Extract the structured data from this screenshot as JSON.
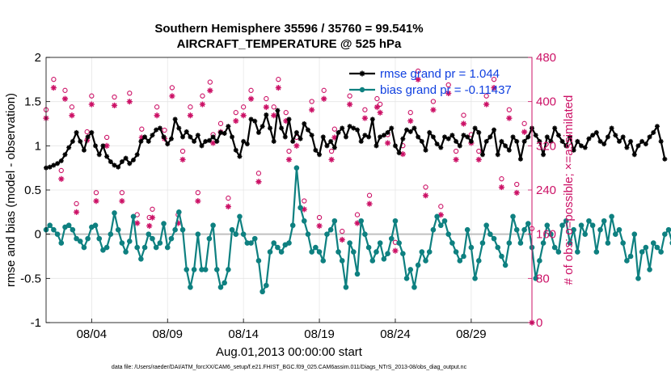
{
  "header": {
    "title_line1": "Southern Hemisphere 35596 / 35760 = 99.541%",
    "title_line2": "AIRCRAFT_TEMPERATURE @ 525 hPa"
  },
  "footer": {
    "datafile": "data file: /Users/raeder/DAI/ATM_forcXX/CAM6_setup/f.e21.FHIST_BGC.f09_025.CAM6assim.011/Diags_NTrS_2013-08/obs_diag_output.nc"
  },
  "colors": {
    "rmse": "#000000",
    "bias": "#0e8080",
    "obs": "#cc1166",
    "legend_text": "#1040e0",
    "zero_line": "#c0c0c0",
    "grid": "#e6e6e6"
  },
  "chart_data": {
    "type": "line",
    "title": "Southern Hemisphere 35596 / 35760 = 99.541%",
    "subtitle": "AIRCRAFT_TEMPERATURE @ 525 hPa",
    "xlabel": "Aug.01,2013 00:00:00 start",
    "ylabel": "rmse and bias (model - observation)",
    "ylabel_right": "# of obs: o=possible; ×=assimilated",
    "xlim": [
      1,
      33
    ],
    "ylim": [
      -1,
      2
    ],
    "ylim_right": [
      0,
      480
    ],
    "x_ticks": [
      4,
      9,
      14,
      19,
      24,
      29
    ],
    "x_tick_labels": [
      "08/04",
      "08/09",
      "08/14",
      "08/19",
      "08/24",
      "08/29"
    ],
    "y_ticks": [
      -1,
      -0.5,
      0,
      0.5,
      1,
      1.5,
      2
    ],
    "y_tick_labels": [
      "-1",
      "-0.5",
      "0",
      "0.5",
      "1",
      "1.5",
      "2"
    ],
    "y_ticks_right": [
      0,
      80,
      160,
      240,
      320,
      400,
      480
    ],
    "y_tick_labels_right": [
      "0",
      "80",
      "160",
      "240",
      "320",
      "400",
      "480"
    ],
    "zero_line": 0,
    "grid": true,
    "legend_position": "top-right",
    "series": [
      {
        "name": "rmse grand pr = 1.044",
        "axis": "left",
        "style": "line-star",
        "x_start": 1.0,
        "x_step": 0.25,
        "values": [
          0.75,
          0.76,
          0.78,
          0.8,
          0.83,
          0.9,
          0.98,
          1.05,
          1.15,
          1.05,
          0.95,
          1.1,
          1.15,
          1.0,
          0.9,
          1.0,
          0.88,
          0.82,
          0.78,
          0.76,
          0.82,
          0.86,
          0.8,
          0.84,
          0.9,
          1.05,
          1.1,
          1.05,
          1.12,
          1.18,
          1.2,
          1.1,
          1.02,
          1.08,
          1.3,
          1.2,
          1.1,
          1.16,
          1.1,
          1.05,
          1.12,
          1.0,
          1.05,
          1.06,
          1.1,
          1.05,
          1.15,
          1.14,
          1.22,
          1.1,
          0.95,
          0.88,
          1.05,
          1.02,
          1.3,
          1.28,
          1.15,
          1.22,
          1.35,
          1.2,
          1.05,
          1.4,
          1.2,
          1.1,
          1.3,
          1.05,
          1.15,
          1.08,
          1.25,
          1.18,
          1.12,
          0.95,
          0.9,
          1.1,
          1.0,
          1.05,
          0.98,
          1.15,
          1.2,
          1.1,
          1.22,
          1.2,
          1.18,
          1.05,
          1.12,
          1.1,
          1.3,
          1.0,
          1.1,
          1.12,
          1.15,
          1.2,
          1.0,
          0.92,
          1.08,
          1.18,
          1.16,
          1.2,
          1.1,
          1.05,
          0.95,
          1.15,
          1.1,
          1.02,
          0.98,
          1.1,
          1.08,
          1.12,
          1.05,
          1.0,
          1.12,
          1.1,
          1.05,
          1.2,
          1.15,
          0.9,
          1.05,
          1.1,
          1.18,
          0.9,
          1.05,
          1.0,
          0.95,
          1.1,
          1.05,
          0.85,
          1.05,
          1.1,
          1.2,
          1.12,
          1.05,
          0.9,
          1.1,
          1.05,
          1.2,
          1.12,
          1.05,
          1.0,
          1.1,
          0.95,
          1.05,
          1.0,
          0.98,
          1.08,
          1.12,
          1.15,
          1.05,
          1.02,
          1.1,
          1.2,
          1.12,
          1.05,
          1.1,
          0.98,
          1.05,
          0.9,
          1.0,
          1.05,
          1.02,
          1.1,
          1.15,
          1.22,
          1.05,
          0.85
        ]
      },
      {
        "name": "bias grand pr = -0.11437",
        "axis": "left",
        "style": "line-circle",
        "x_start": 1.0,
        "x_step": 0.25,
        "values": [
          0.05,
          0.1,
          0.05,
          0.0,
          -0.1,
          0.08,
          0.1,
          0.05,
          -0.05,
          -0.08,
          -0.15,
          -0.05,
          0.08,
          0.1,
          -0.05,
          -0.18,
          -0.15,
          0.0,
          0.24,
          0.05,
          -0.1,
          -0.2,
          -0.08,
          0.2,
          -0.15,
          -0.28,
          -0.15,
          0.0,
          -0.05,
          -0.15,
          -0.1,
          0.12,
          -0.15,
          -0.05,
          0.05,
          0.25,
          0.05,
          -0.4,
          -0.6,
          -0.4,
          0.0,
          -0.4,
          -0.4,
          -0.05,
          0.1,
          -0.4,
          -0.6,
          -0.55,
          -0.4,
          0.05,
          0.0,
          0.2,
          0.0,
          -0.1,
          -0.1,
          -0.05,
          -0.3,
          -0.65,
          -0.58,
          -0.2,
          -0.1,
          -0.15,
          -0.2,
          -0.12,
          -0.1,
          0.1,
          0.75,
          0.3,
          0.15,
          0.0,
          -0.2,
          -0.15,
          -0.2,
          -0.3,
          0.0,
          0.05,
          0.15,
          -0.2,
          -0.3,
          -0.6,
          -0.1,
          -0.2,
          -0.45,
          0.15,
          0.0,
          -0.15,
          -0.3,
          -0.2,
          -0.1,
          -0.28,
          -0.22,
          -0.05,
          0.15,
          -0.1,
          -0.22,
          -0.5,
          -0.4,
          -0.6,
          -0.35,
          -0.2,
          -0.3,
          -0.2,
          0.05,
          0.2,
          0.1,
          0.15,
          0.0,
          -0.1,
          -0.2,
          -0.3,
          -0.25,
          0.05,
          -0.15,
          -0.5,
          -0.3,
          -0.1,
          0.1,
          0.0,
          -0.05,
          -0.15,
          -0.25,
          -0.35,
          -0.1,
          0.2,
          0.05,
          -0.1,
          0.05,
          0.12,
          -0.15,
          -0.5,
          -0.3,
          -0.1,
          0.1,
          0.0,
          -0.15,
          -0.2,
          0.1,
          0.15,
          -0.1,
          0.05,
          -0.2,
          0.1,
          0.0,
          0.15,
          0.1,
          -0.2,
          0.05,
          0.15,
          -0.1,
          0.2,
          0.0,
          0.05,
          -0.1,
          -0.3,
          -0.25,
          0.0,
          -0.5,
          -0.2,
          -0.15,
          -0.4,
          -0.1,
          -0.15,
          -0.2,
          0.0,
          0.05,
          -0.1,
          0.1,
          0.0,
          -0.3,
          -0.55,
          0.15,
          0.18,
          0.0,
          -0.05
        ]
      },
      {
        "name": "obs possible",
        "axis": "right",
        "style": "circle-marker",
        "x": [
          1.0,
          1.5,
          2.0,
          2.25,
          2.7,
          3.0,
          3.7,
          4.0,
          4.3,
          5.0,
          5.5,
          6.0,
          6.5,
          7.0,
          7.3,
          7.8,
          8.0,
          8.3,
          8.8,
          9.3,
          9.7,
          10.0,
          10.5,
          11.0,
          11.3,
          11.8,
          12.0,
          12.5,
          13.0,
          13.5,
          14.0,
          14.5,
          15.0,
          15.5,
          16.0,
          16.3,
          16.8,
          17.0,
          17.5,
          18.0,
          18.5,
          19.0,
          19.3,
          19.8,
          20.0,
          20.5,
          21.0,
          21.5,
          22.0,
          22.3,
          22.8,
          23.0,
          23.5,
          24.0,
          24.5,
          25.0,
          25.5,
          26.0,
          26.5,
          27.0,
          27.5,
          28.0,
          28.5,
          29.0,
          29.5,
          30.0,
          30.5,
          31.0,
          31.5,
          32.0,
          32.5,
          33.0
        ],
        "values": [
          375,
          430,
          265,
          410,
          380,
          205,
          335,
          400,
          225,
          325,
          398,
          225,
          405,
          185,
          340,
          180,
          195,
          380,
          338,
          415,
          185,
          300,
          380,
          225,
          400,
          425,
          330,
          350,
          215,
          370,
          380,
          410,
          260,
          395,
          380,
          430,
          370,
          300,
          325,
          210,
          390,
          180,
          410,
          300,
          340,
          155,
          400,
          185,
          375,
          220,
          395,
          385,
          330,
          135,
          310,
          370,
          445,
          235,
          390,
          200,
          420,
          300,
          365,
          330,
          300,
          400,
          430,
          250,
          375,
          240,
          350,
          160
        ]
      },
      {
        "name": "obs assimilated",
        "axis": "right",
        "style": "star-marker",
        "x": [
          1.0,
          1.5,
          2.0,
          2.25,
          2.7,
          3.0,
          3.7,
          4.0,
          4.3,
          5.0,
          5.5,
          6.0,
          6.5,
          7.0,
          7.3,
          7.8,
          8.0,
          8.3,
          8.8,
          9.3,
          9.7,
          10.0,
          10.5,
          11.0,
          11.3,
          11.8,
          12.0,
          12.5,
          13.0,
          13.5,
          14.0,
          14.5,
          15.0,
          15.5,
          16.0,
          16.3,
          16.8,
          17.0,
          17.5,
          18.0,
          18.5,
          19.0,
          19.3,
          19.8,
          20.0,
          20.5,
          21.0,
          21.5,
          22.0,
          22.3,
          22.8,
          23.0,
          23.5,
          24.0,
          24.5,
          25.0,
          25.5,
          26.0,
          26.5,
          27.0,
          27.5,
          28.0,
          28.5,
          29.0,
          29.5,
          30.0,
          30.5,
          31.0,
          31.5,
          32.0,
          32.5,
          33.0
        ],
        "values": [
          370,
          425,
          260,
          405,
          375,
          200,
          330,
          395,
          220,
          320,
          393,
          220,
          400,
          180,
          335,
          175,
          190,
          375,
          333,
          410,
          180,
          295,
          375,
          220,
          395,
          420,
          325,
          345,
          210,
          365,
          375,
          405,
          255,
          390,
          375,
          425,
          365,
          295,
          320,
          205,
          385,
          175,
          405,
          295,
          335,
          150,
          395,
          180,
          370,
          215,
          390,
          380,
          325,
          130,
          305,
          365,
          440,
          230,
          385,
          195,
          415,
          295,
          360,
          325,
          295,
          395,
          425,
          245,
          370,
          235,
          345,
          0
        ]
      }
    ]
  }
}
